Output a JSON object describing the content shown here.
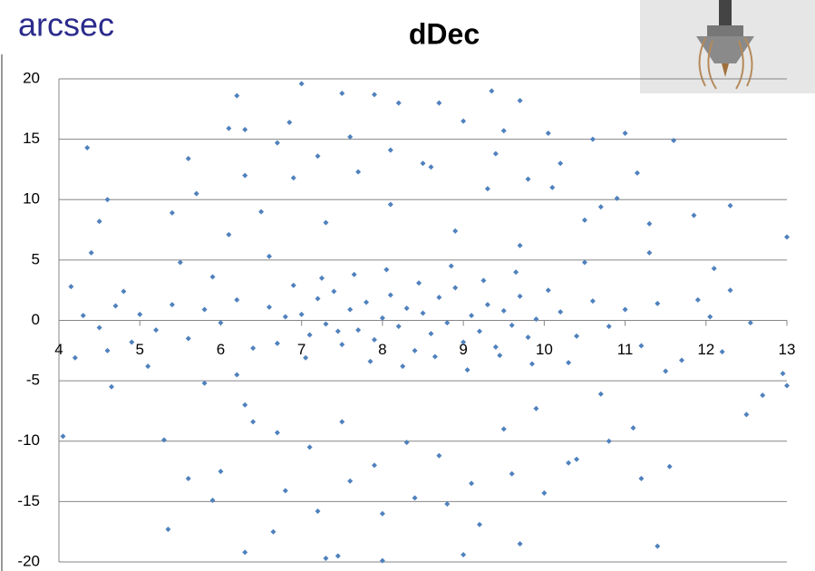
{
  "chart_data": {
    "type": "scatter",
    "title": "dDec",
    "y_label": "arcsec",
    "color": "#4f81bd",
    "x": [
      4.05,
      4.15,
      4.35,
      4.6,
      4.65,
      4.5,
      5.6,
      6.1,
      6.2,
      6.3,
      7.0,
      6.85,
      7.5,
      7.9,
      8.2,
      8.7,
      9.35,
      9.7,
      10.05,
      11.0,
      11.6,
      12.3,
      13.0,
      12.55,
      12.7,
      12.5,
      13.0,
      12.95,
      11.55,
      11.4,
      8.0,
      7.45,
      7.3,
      6.3,
      5.35,
      6.65,
      9.0,
      9.7,
      5.9,
      12.1,
      12.05,
      11.85,
      11.15,
      10.6,
      9.5,
      7.0,
      7.1,
      7.2,
      7.3,
      7.4,
      7.5,
      7.6,
      7.7,
      7.8,
      7.9,
      8.0,
      8.1,
      8.2,
      8.3,
      8.4,
      8.5,
      8.6,
      8.7,
      8.8,
      8.9,
      9.0,
      9.1,
      9.2,
      9.3,
      9.4,
      9.5,
      9.6,
      9.7,
      9.8,
      9.9,
      6.6,
      6.7,
      6.8,
      6.9,
      7.05,
      7.25,
      7.45,
      7.65,
      7.85,
      8.05,
      8.25,
      8.45,
      8.65,
      8.85,
      9.05,
      9.25,
      9.45,
      9.65,
      9.85,
      10.05,
      5.0,
      5.2,
      5.4,
      5.6,
      5.8,
      6.0,
      6.2,
      6.4,
      4.3,
      4.5,
      4.7,
      4.9,
      10.2,
      10.4,
      10.6,
      10.8,
      11.0,
      11.2,
      11.4,
      10.3,
      10.5,
      5.5,
      5.8,
      6.1,
      6.3,
      6.5,
      6.7,
      6.9,
      7.1,
      7.3,
      7.5,
      7.7,
      7.9,
      8.1,
      8.3,
      8.5,
      8.7,
      8.9,
      9.1,
      9.3,
      9.5,
      9.7,
      9.9,
      10.1,
      10.3,
      10.5,
      10.7,
      10.9,
      11.1,
      11.3,
      11.5,
      5.3,
      5.6,
      6.0,
      6.4,
      6.8,
      7.2,
      7.6,
      8.0,
      8.4,
      8.8,
      9.2,
      9.6,
      10.0,
      10.4,
      10.8,
      11.2,
      5.4,
      5.7,
      6.3,
      6.7,
      7.2,
      7.6,
      8.1,
      8.6,
      9.0,
      9.4,
      9.8,
      10.2,
      10.7,
      11.3,
      4.4,
      4.8,
      4.2,
      4.6,
      5.1,
      5.9,
      6.2,
      6.6,
      11.7,
      11.9,
      12.2,
      12.3
    ],
    "values": [
      -9.6,
      2.8,
      14.3,
      10,
      -5.5,
      8.2,
      13.4,
      15.9,
      18.6,
      15.8,
      19.6,
      16.4,
      18.8,
      18.7,
      18.0,
      18.0,
      19.0,
      18.2,
      15.5,
      15.5,
      14.9,
      9.5,
      6.9,
      -0.2,
      -6.2,
      -7.8,
      -5.4,
      -4.4,
      -12.1,
      -18.7,
      -19.9,
      -19.5,
      -19.7,
      -19.2,
      -17.3,
      -17.5,
      -19.4,
      -18.5,
      -14.9,
      4.3,
      0.3,
      8.7,
      12.2,
      15.0,
      15.7,
      0.5,
      -1.2,
      1.8,
      -0.3,
      2.4,
      -2.0,
      0.9,
      -0.8,
      1.5,
      -1.6,
      0.2,
      2.1,
      -0.5,
      1.0,
      -2.5,
      0.6,
      -1.1,
      1.9,
      -0.2,
      2.7,
      -1.8,
      0.4,
      -0.9,
      1.3,
      -2.2,
      0.8,
      -0.4,
      2.0,
      -1.4,
      0.1,
      1.1,
      -1.9,
      0.3,
      2.9,
      -3.1,
      3.5,
      -0.9,
      3.8,
      -3.4,
      4.2,
      -3.8,
      3.1,
      -3.0,
      4.5,
      -4.1,
      3.3,
      -2.9,
      4.0,
      -3.6,
      2.5,
      0.5,
      -0.8,
      1.3,
      -1.5,
      0.9,
      -0.2,
      1.7,
      -2.3,
      0.4,
      -0.6,
      1.2,
      -1.8,
      0.7,
      -1.3,
      1.6,
      -0.5,
      0.9,
      -2.1,
      1.4,
      -3.5,
      4.8,
      4.8,
      -5.2,
      7.1,
      -7.0,
      9.0,
      -9.3,
      11.8,
      -10.5,
      8.1,
      -8.4,
      12.3,
      -12.0,
      9.6,
      -10.1,
      13.0,
      -11.2,
      7.4,
      -13.5,
      10.9,
      -9.0,
      6.2,
      -7.3,
      11.0,
      -11.8,
      8.3,
      -6.1,
      10.1,
      -8.9,
      5.6,
      -4.2,
      -9.9,
      -13.1,
      -12.5,
      -8.4,
      -14.1,
      -15.8,
      -13.3,
      -16.0,
      -14.7,
      -15.2,
      -16.9,
      -12.7,
      -14.3,
      -11.5,
      -10.0,
      -13.1,
      8.9,
      10.5,
      12.0,
      14.7,
      13.6,
      15.2,
      14.1,
      12.7,
      16.5,
      13.8,
      11.7,
      13.0,
      9.4,
      8.0,
      5.6,
      2.4,
      -3.1,
      -2.5,
      -3.8,
      3.6,
      -4.5,
      5.3,
      -3.3,
      1.7,
      -2.6,
      2.5
    ],
    "xlim": [
      4,
      13
    ],
    "xticks": [
      4,
      5,
      6,
      7,
      8,
      9,
      10,
      11,
      12,
      13
    ],
    "ylim": [
      -20,
      20
    ],
    "yticks": [
      -20,
      -15,
      -10,
      -5,
      0,
      5,
      10,
      15,
      20
    ],
    "grid": true
  }
}
